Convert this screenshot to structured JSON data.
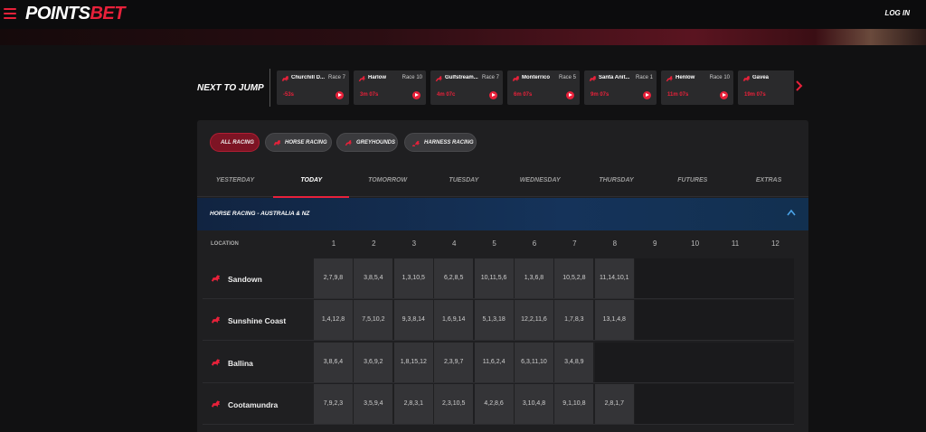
{
  "header": {
    "logo_primary": "POINTS",
    "logo_accent": "BET",
    "login_label": "LOG IN",
    "menu_icon": "hamburger-icon"
  },
  "colors": {
    "accent": "#e8213a",
    "panel": "#1f1f21",
    "cell": "#343437",
    "section": "#15335a"
  },
  "next_to_jump": {
    "label": "NEXT TO JUMP",
    "items": [
      {
        "icon": "horse-icon",
        "name": "Churchill D...",
        "race": "Race 7",
        "time": "-53s"
      },
      {
        "icon": "greyhound-icon",
        "name": "Harlow",
        "race": "Race 10",
        "time": "3m 07s"
      },
      {
        "icon": "greyhound-icon",
        "name": "Gulfstream...",
        "race": "Race 7",
        "time": "4m 07c"
      },
      {
        "icon": "horse-icon",
        "name": "Monterrico",
        "race": "Race 5",
        "time": "6m 07s"
      },
      {
        "icon": "horse-icon",
        "name": "Santa Anit...",
        "race": "Race 1",
        "time": "9m 07s"
      },
      {
        "icon": "greyhound-icon",
        "name": "Henlow",
        "race": "Race 10",
        "time": "11m 07s"
      },
      {
        "icon": "horse-icon",
        "name": "Gavea",
        "race": "Ra",
        "time": "19m 07s"
      }
    ]
  },
  "filters": [
    {
      "label": "ALL RACING",
      "icon": "",
      "active": true
    },
    {
      "label": "HORSE RACING",
      "icon": "horse-icon",
      "active": false
    },
    {
      "label": "GREYHOUNDS",
      "icon": "greyhound-icon",
      "active": false
    },
    {
      "label": "HARNESS RACING",
      "icon": "harness-icon",
      "active": false
    }
  ],
  "days": [
    {
      "label": "YESTERDAY",
      "active": false
    },
    {
      "label": "TODAY",
      "active": true
    },
    {
      "label": "TOMORROW",
      "active": false
    },
    {
      "label": "TUESDAY",
      "active": false
    },
    {
      "label": "WEDNESDAY",
      "active": false
    },
    {
      "label": "THURSDAY",
      "active": false
    },
    {
      "label": "FUTURES",
      "active": false
    },
    {
      "label": "EXTRAS",
      "active": false
    }
  ],
  "section": {
    "title": "HORSE RACING - AUSTRALIA & NZ",
    "expanded": true
  },
  "table": {
    "location_header": "LOCATION",
    "columns": [
      "1",
      "2",
      "3",
      "4",
      "5",
      "6",
      "7",
      "8",
      "9",
      "10",
      "11",
      "12"
    ],
    "rows": [
      {
        "name": "Sandown",
        "results": [
          "2,7,9,8",
          "3,8,5,4",
          "1,3,10,5",
          "6,2,8,5",
          "10,11,5,6",
          "1,3,6,8",
          "10,5,2,8",
          "11,14,10,1"
        ]
      },
      {
        "name": "Sunshine Coast",
        "results": [
          "1,4,12,8",
          "7,5,10,2",
          "9,3,8,14",
          "1,6,9,14",
          "5,1,3,18",
          "12,2,11,6",
          "1,7,8,3",
          "13,1,4,8"
        ]
      },
      {
        "name": "Ballina",
        "results": [
          "3,8,6,4",
          "3,6,9,2",
          "1,8,15,12",
          "2,3,9,7",
          "11,6,2,4",
          "6,3,11,10",
          "3,4,8,9"
        ]
      },
      {
        "name": "Cootamundra",
        "results": [
          "7,9,2,3",
          "3,5,9,4",
          "2,8,3,1",
          "2,3,10,5",
          "4,2,8,6",
          "3,10,4,8",
          "9,1,10,8",
          "2,8,1,7"
        ]
      }
    ]
  }
}
